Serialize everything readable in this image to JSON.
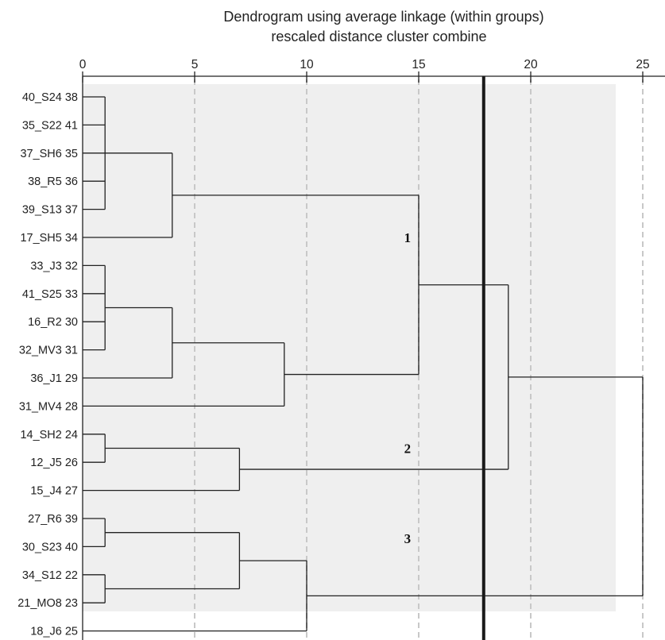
{
  "chart_data": {
    "type": "dendrogram",
    "title": "Dendrogram using average linkage (within groups)",
    "subtitle": "rescaled distance cluster combine",
    "xlim": [
      0,
      25
    ],
    "xticks": [
      "0",
      "5",
      "10",
      "15",
      "20",
      "25"
    ],
    "grid": true,
    "cut_distance": 17.9,
    "leaves": [
      {
        "name": "40_S24",
        "num": "38"
      },
      {
        "name": "35_S22",
        "num": "41"
      },
      {
        "name": "37_SH6",
        "num": "35"
      },
      {
        "name": "38_R5",
        "num": "36"
      },
      {
        "name": "39_S13",
        "num": "37"
      },
      {
        "name": "17_SH5",
        "num": "34"
      },
      {
        "name": "33_J3",
        "num": "32"
      },
      {
        "name": "41_S25",
        "num": "33"
      },
      {
        "name": "16_R2",
        "num": "30"
      },
      {
        "name": "32_MV3",
        "num": "31"
      },
      {
        "name": "36_J1",
        "num": "29"
      },
      {
        "name": "31_MV4",
        "num": "28"
      },
      {
        "name": "14_SH2",
        "num": "24"
      },
      {
        "name": "12_J5",
        "num": "26"
      },
      {
        "name": "15_J4",
        "num": "27"
      },
      {
        "name": "27_R6",
        "num": "39"
      },
      {
        "name": "30_S23",
        "num": "40"
      },
      {
        "name": "34_S12",
        "num": "22"
      },
      {
        "name": "21_MO8",
        "num": "23"
      },
      {
        "name": "18_J6",
        "num": "25"
      }
    ],
    "merges": [
      {
        "children": [
          0,
          1,
          2,
          3,
          4
        ],
        "distance": 1
      },
      {
        "children": [
          6,
          7,
          8,
          9
        ],
        "distance": 1
      },
      {
        "children": [
          12,
          13
        ],
        "distance": 1
      },
      {
        "children": [
          15,
          16
        ],
        "distance": 1
      },
      {
        "children": [
          17,
          18
        ],
        "distance": 1
      },
      {
        "children": [
          20,
          5
        ],
        "distance": 4
      },
      {
        "children": [
          21,
          10
        ],
        "distance": 4
      },
      {
        "children": [
          26,
          11
        ],
        "distance": 9
      },
      {
        "children": [
          25,
          27
        ],
        "distance": 15
      },
      {
        "children": [
          22,
          14
        ],
        "distance": 7
      },
      {
        "children": [
          23,
          24
        ],
        "distance": 7
      },
      {
        "children": [
          30,
          19
        ],
        "distance": 10
      },
      {
        "children": [
          28,
          29
        ],
        "distance": 19
      },
      {
        "children": [
          32,
          31
        ],
        "distance": 25
      }
    ],
    "cluster_labels": [
      {
        "text": "1",
        "x": 14.5,
        "leaf_pos": 5.0
      },
      {
        "text": "2",
        "x": 14.5,
        "leaf_pos": 12.5
      },
      {
        "text": "3",
        "x": 14.5,
        "leaf_pos": 15.7
      }
    ]
  }
}
